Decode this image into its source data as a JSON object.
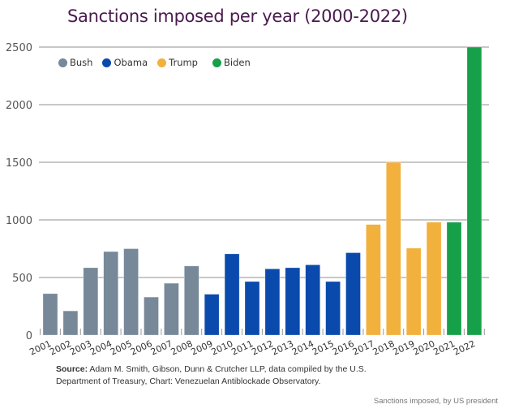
{
  "chart_data": {
    "type": "bar",
    "title": "Sanctions imposed per year (2000-2022)",
    "xlabel": "",
    "ylabel": "",
    "ylim": [
      0,
      2500
    ],
    "yticks": [
      0,
      500,
      1000,
      1500,
      2000,
      2500
    ],
    "grid": true,
    "legend_position": "top-left",
    "categories": [
      "2001",
      "2002",
      "2003",
      "2004",
      "2005",
      "2006",
      "2007",
      "2008",
      "2009",
      "2010",
      "2011",
      "2012",
      "2013",
      "2014",
      "2015",
      "2016",
      "2017",
      "2018",
      "2019",
      "2020",
      "2021",
      "2022"
    ],
    "values": [
      360,
      210,
      585,
      725,
      750,
      330,
      450,
      600,
      355,
      705,
      465,
      575,
      585,
      610,
      465,
      715,
      960,
      1500,
      755,
      980,
      980,
      2500
    ],
    "groups": [
      "Bush",
      "Bush",
      "Bush",
      "Bush",
      "Bush",
      "Bush",
      "Bush",
      "Bush",
      "Obama",
      "Obama",
      "Obama",
      "Obama",
      "Obama",
      "Obama",
      "Obama",
      "Obama",
      "Trump",
      "Trump",
      "Trump",
      "Trump",
      "Biden",
      "Biden"
    ],
    "legend": [
      {
        "name": "Bush",
        "color": "#778899"
      },
      {
        "name": "Obama",
        "color": "#0b4aad"
      },
      {
        "name": "Trump",
        "color": "#f2b03d"
      },
      {
        "name": "Biden",
        "color": "#17a04a"
      }
    ]
  },
  "source": {
    "label": "Source:",
    "text": " Adam M. Smith, Gibson, Dunn & Crutcher LLP, data compiled by the U.S. Department of Treasury, Chart: Venezuelan Antiblockade Observatory."
  },
  "caption": "Sanctions imposed, by US president"
}
